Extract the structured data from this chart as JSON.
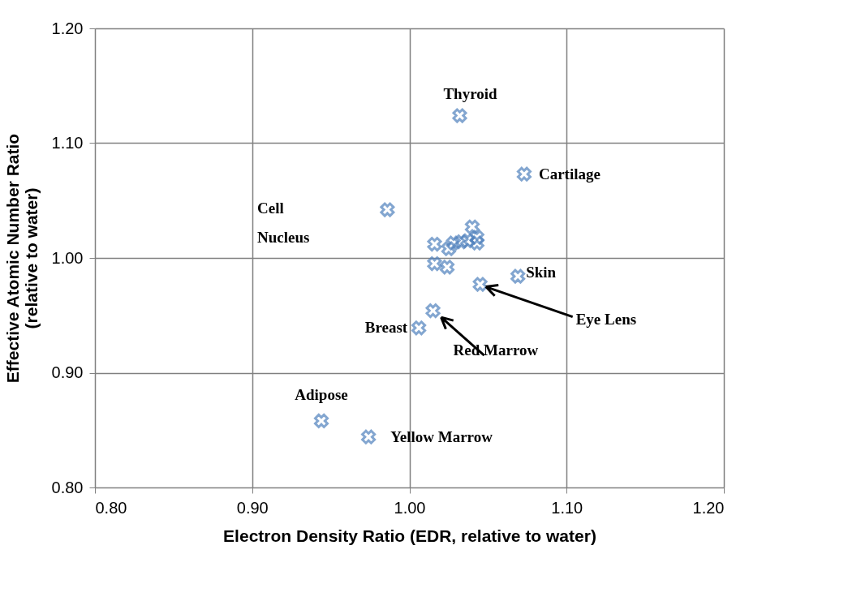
{
  "chart_data": {
    "type": "scatter",
    "xlabel": "Electron Density Ratio (EDR, relative to water)",
    "ylabel": "Effective Atomic Number Ratio\n(relative to water)",
    "x": [
      1.032,
      1.073,
      0.986,
      1.069,
      1.045,
      1.015,
      1.006,
      0.944,
      0.974,
      1.016,
      1.016,
      1.024,
      1.028,
      1.033,
      1.037,
      1.04,
      1.043,
      1.043,
      1.025
    ],
    "series": [
      {
        "color": "#4f81bd",
        "values": [
          1.124,
          1.073,
          1.042,
          0.984,
          0.977,
          0.954,
          0.939,
          0.858,
          0.844,
          1.012,
          0.995,
          0.992,
          1.013,
          1.014,
          1.015,
          1.027,
          1.018,
          1.013,
          1.008
        ]
      }
    ],
    "xlim": [
      0.8,
      1.2
    ],
    "ylim": [
      0.8,
      1.2
    ],
    "xticks": [
      {
        "value": 0.8,
        "label": "0.80"
      },
      {
        "value": 0.9,
        "label": "0.90"
      },
      {
        "value": 1.0,
        "label": "1.00"
      },
      {
        "value": 1.1,
        "label": "1.10"
      },
      {
        "value": 1.2,
        "label": "1.20"
      }
    ],
    "yticks": [
      {
        "value": 0.8,
        "label": "0.80"
      },
      {
        "value": 0.9,
        "label": "0.90"
      },
      {
        "value": 1.0,
        "label": "1.00"
      },
      {
        "value": 1.1,
        "label": "1.10"
      },
      {
        "value": 1.2,
        "label": "1.20"
      }
    ],
    "grid": true,
    "marker": "cross",
    "annotations": [
      {
        "text": "Thyroid",
        "x": 1.032,
        "y": 1.124
      },
      {
        "text": "Cartilage",
        "x": 1.073,
        "y": 1.073
      },
      "Cell Nucleus",
      {
        "text": "Skin",
        "x": 1.069,
        "y": 0.984
      },
      {
        "text": "Eye Lens",
        "x": 1.045,
        "y": 0.977
      },
      {
        "text": "Red Marrow",
        "x": 1.015,
        "y": 0.954
      },
      {
        "text": "Breast",
        "x": 1.006,
        "y": 0.939
      },
      {
        "text": "Adipose",
        "x": 0.944,
        "y": 0.858
      },
      {
        "text": "Yellow Marrow",
        "x": 0.974,
        "y": 0.844
      }
    ]
  }
}
